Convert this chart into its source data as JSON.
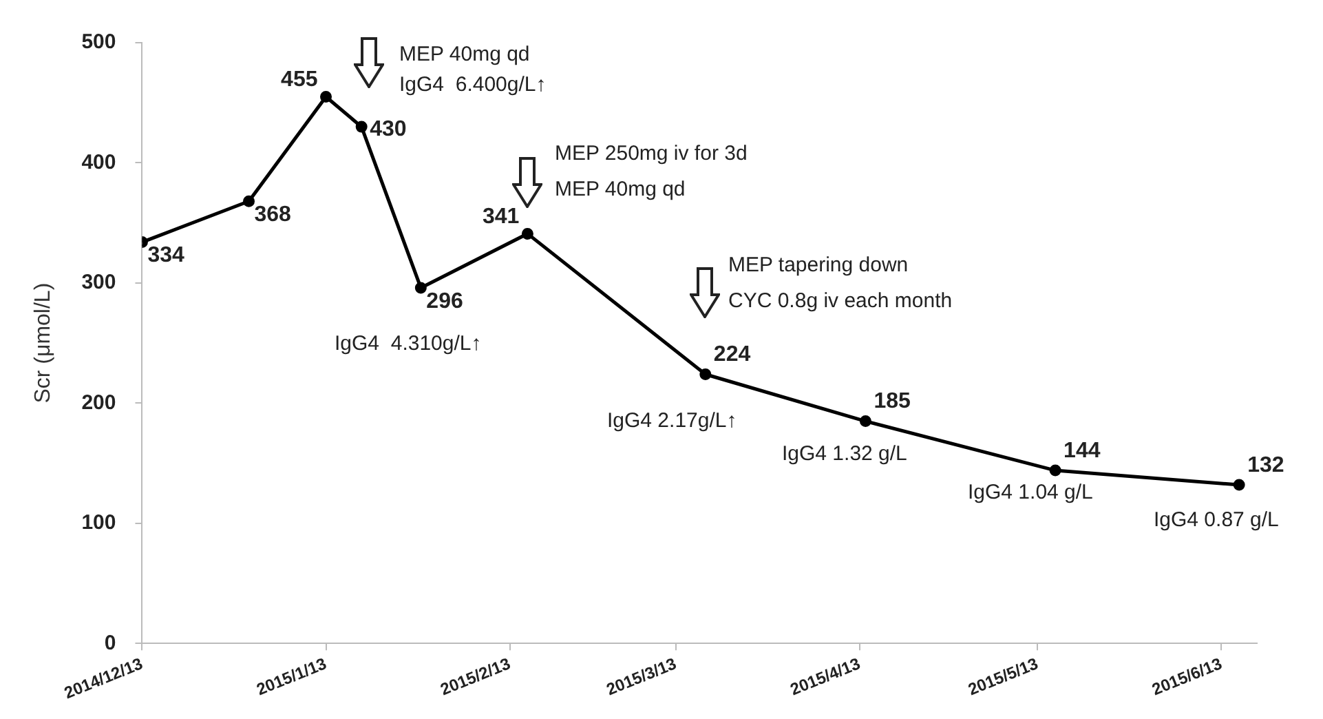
{
  "chart_data": {
    "type": "line",
    "ylabel": "Scr (μmol/L)",
    "x": [
      "2014-12-13",
      "2014-12-31",
      "2015-01-13",
      "2015-01-19",
      "2015-01-29",
      "2015-02-16",
      "2015-03-18",
      "2015-04-14",
      "2015-05-16",
      "2015-06-16"
    ],
    "series": [
      {
        "color": "#000000",
        "values": [
          334,
          368,
          455,
          430,
          296,
          341,
          224,
          185,
          144,
          132
        ]
      }
    ],
    "xlim": [
      "2014-12-13",
      "2015-06-19"
    ],
    "xticks": [
      {
        "value": "2014-12-13",
        "label": "2014/12/13"
      },
      {
        "value": "2015-01-13",
        "label": "2015/1/13"
      },
      {
        "value": "2015-02-13",
        "label": "2015/2/13"
      },
      {
        "value": "2015-03-13",
        "label": "2015/3/13"
      },
      {
        "value": "2015-04-13",
        "label": "2015/4/13"
      },
      {
        "value": "2015-05-13",
        "label": "2015/5/13"
      },
      {
        "value": "2015-06-13",
        "label": "2015/6/13"
      }
    ],
    "ylim": [
      0,
      500
    ],
    "yticks": [
      0,
      100,
      200,
      300,
      400,
      500
    ],
    "grid": false,
    "legend": false,
    "marker": "circle",
    "line_style": "solid",
    "data_labels": true,
    "annotations": [
      "MEP 40mg qd",
      "IgG4  6.400g/L↑",
      "MEP 250mg iv for 3d",
      "MEP 40mg qd",
      "MEP tapering down",
      "CYC 0.8g iv each month",
      "IgG4  4.310g/L↑",
      "IgG4 2.17g/L↑",
      "IgG4 1.32 g/L",
      "IgG4 1.04 g/L",
      "IgG4 0.87 g/L"
    ]
  }
}
